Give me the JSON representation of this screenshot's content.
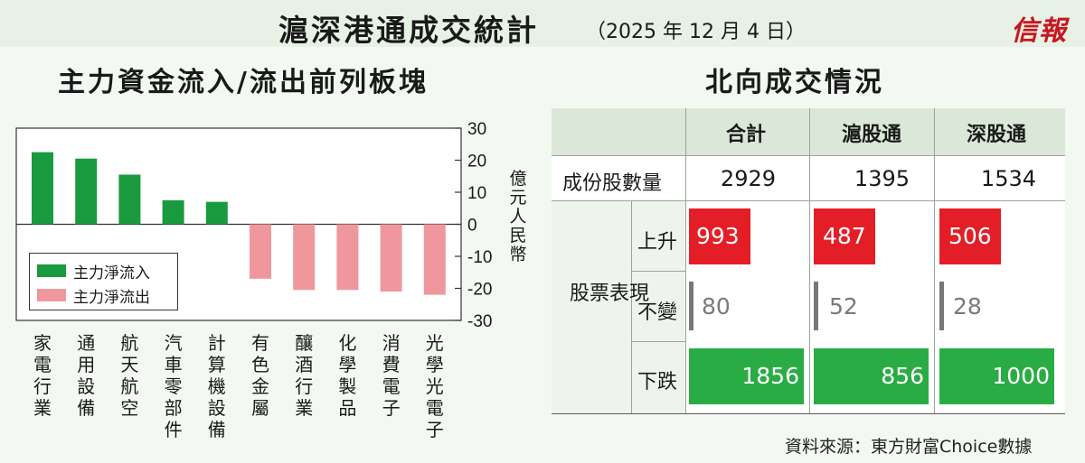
{
  "header": {
    "title": "滬深港通成交統計",
    "date": "（2025 年 12 月 4 日）",
    "logo": "信報"
  },
  "left_panel": {
    "title": "主力資金流入/流出前列板塊",
    "unit": "億元人民幣"
  },
  "right_panel": {
    "title": "北向成交情況",
    "columns": [
      "合計",
      "滬股通",
      "深股通"
    ],
    "row_constituents_label": "成份股數量",
    "constituents": [
      "2929",
      "1395",
      "1534"
    ],
    "group_label": "股票表現",
    "up_label": "上升",
    "flat_label": "不變",
    "down_label": "下跌",
    "up": [
      "993",
      "487",
      "506"
    ],
    "flat": [
      "80",
      "52",
      "28"
    ],
    "down": [
      "1856",
      "856",
      "1000"
    ],
    "colors": {
      "up": "#e41e26",
      "down": "#2aac45",
      "flat": "#777777"
    },
    "source": "資料來源：東方財富Choice數據"
  },
  "chart_data": {
    "type": "bar",
    "categories": [
      "家電行業",
      "通用設備",
      "航天航空",
      "汽車零部件",
      "計算機設備",
      "有色金屬",
      "釀酒行業",
      "化學製品",
      "消費電子",
      "光學光電子"
    ],
    "series": [
      {
        "name": "主力淨流入",
        "color": "#1a9a3e",
        "values": [
          22.5,
          20.5,
          15.5,
          7.5,
          7,
          null,
          null,
          null,
          null,
          null
        ]
      },
      {
        "name": "主力淨流出",
        "color": "#f0979e",
        "values": [
          null,
          null,
          null,
          null,
          null,
          -17,
          -20.5,
          -20.5,
          -21,
          -22
        ]
      }
    ],
    "ylabel": "億元人民幣",
    "ylim": [
      -30,
      30
    ],
    "yticks": [
      30,
      20,
      10,
      0,
      -10,
      -20,
      -30
    ],
    "ytick_labels": [
      "30",
      "20",
      "10",
      "0",
      "-10",
      "-20",
      "-30"
    ],
    "legend": "bottom-left"
  }
}
